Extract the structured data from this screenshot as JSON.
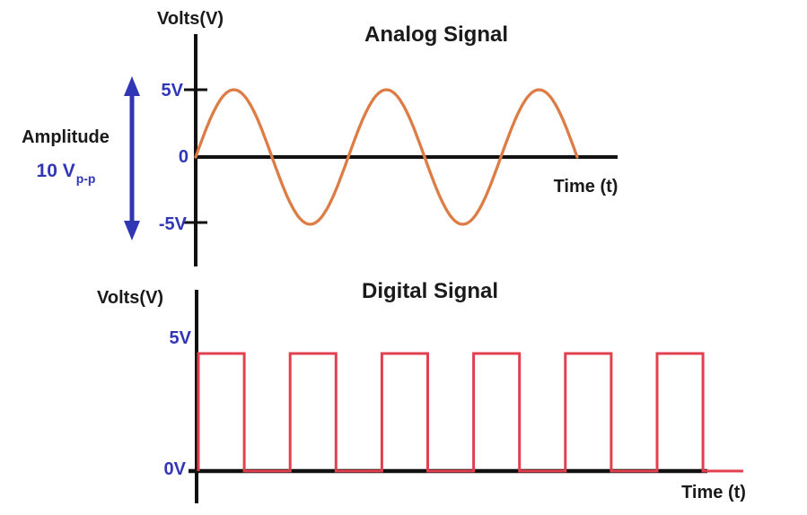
{
  "figure": {
    "colors": {
      "axis": "#111111",
      "text_black": "#1a1a1a",
      "blue": "#3036b4",
      "analog_wave": "#dd7c45",
      "digital_wave": "#e2404e"
    },
    "analog": {
      "title": "Analog Signal",
      "y_axis_label": "Volts(V)",
      "x_axis_label": "Time (t)",
      "tick_plus5": "5V",
      "tick_zero": "0",
      "tick_minus5": "-5V",
      "amplitude_label": "Amplitude",
      "amplitude_value": "10 V",
      "amplitude_value_sub": "p-p"
    },
    "digital": {
      "title": "Digital Signal",
      "y_axis_label": "Volts(V)",
      "x_axis_label": "Time (t)",
      "tick_high": "5V",
      "tick_low": "0V"
    }
  },
  "chart_data": [
    {
      "type": "line",
      "title": "Analog Signal",
      "waveform": "sine",
      "amplitude_volts": 5,
      "peak_to_peak_volts": 10,
      "cycles": 2.5,
      "starts_at": 0,
      "ylabel": "Volts(V)",
      "xlabel": "Time (t)",
      "yticks": [
        5,
        0,
        -5
      ],
      "ytick_labels": [
        "5V",
        "0",
        "-5V"
      ],
      "ylim": [
        -5,
        5
      ],
      "annotation": "Amplitude 10 Vp-p",
      "color": "#dd7c45"
    },
    {
      "type": "line",
      "title": "Digital Signal",
      "waveform": "square",
      "high_volts": 5,
      "low_volts": 0,
      "pulses": 6,
      "duty_cycle": 0.5,
      "ylabel": "Volts(V)",
      "xlabel": "Time (t)",
      "yticks": [
        5,
        0
      ],
      "ytick_labels": [
        "5V",
        "0V"
      ],
      "color": "#e2404e"
    }
  ]
}
